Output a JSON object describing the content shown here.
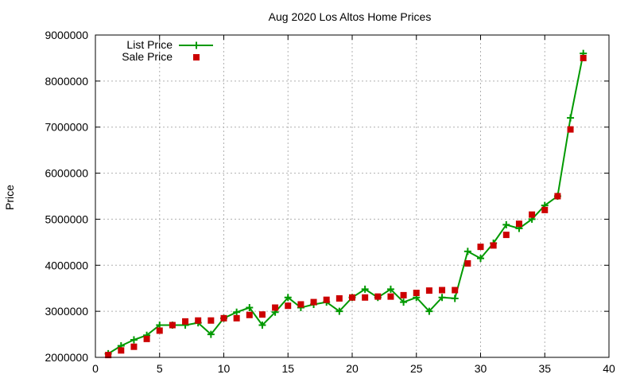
{
  "chart_data": {
    "type": "line",
    "title": "Aug 2020 Los Altos Home Prices",
    "xlabel": "",
    "ylabel": "Price",
    "xlim": [
      0,
      40
    ],
    "ylim": [
      2000000,
      9000000
    ],
    "xticks": [
      0,
      5,
      10,
      15,
      20,
      25,
      30,
      35,
      40
    ],
    "yticks": [
      2000000,
      3000000,
      4000000,
      5000000,
      6000000,
      7000000,
      8000000,
      9000000
    ],
    "grid": true,
    "legend_position": "top-left",
    "x": [
      1,
      2,
      3,
      4,
      5,
      6,
      7,
      8,
      9,
      10,
      11,
      12,
      13,
      14,
      15,
      16,
      17,
      18,
      19,
      20,
      21,
      22,
      23,
      24,
      25,
      26,
      27,
      28,
      29,
      30,
      31,
      32,
      33,
      34,
      35,
      36,
      37,
      38
    ],
    "series": [
      {
        "name": "List Price",
        "style": "line-plus",
        "color": "#009900",
        "values": [
          2080000,
          2250000,
          2380000,
          2480000,
          2700000,
          2700000,
          2700000,
          2750000,
          2500000,
          2850000,
          2980000,
          3080000,
          2700000,
          2980000,
          3300000,
          3080000,
          3150000,
          3200000,
          3000000,
          3300000,
          3480000,
          3300000,
          3480000,
          3200000,
          3300000,
          3000000,
          3300000,
          3280000,
          4300000,
          4150000,
          4480000,
          4880000,
          4800000,
          5000000,
          5300000,
          5500000,
          7200000,
          8600000
        ]
      },
      {
        "name": "Sale Price",
        "style": "points-square",
        "color": "#cc0000",
        "values": [
          2050000,
          2150000,
          2230000,
          2400000,
          2580000,
          2700000,
          2780000,
          2800000,
          2800000,
          2850000,
          2850000,
          2920000,
          2930000,
          3080000,
          3120000,
          3150000,
          3200000,
          3250000,
          3280000,
          3300000,
          3300000,
          3320000,
          3320000,
          3350000,
          3400000,
          3450000,
          3460000,
          3460000,
          4040000,
          4400000,
          4430000,
          4660000,
          4900000,
          5100000,
          5200000,
          5500000,
          6950000,
          8500000
        ]
      }
    ]
  }
}
